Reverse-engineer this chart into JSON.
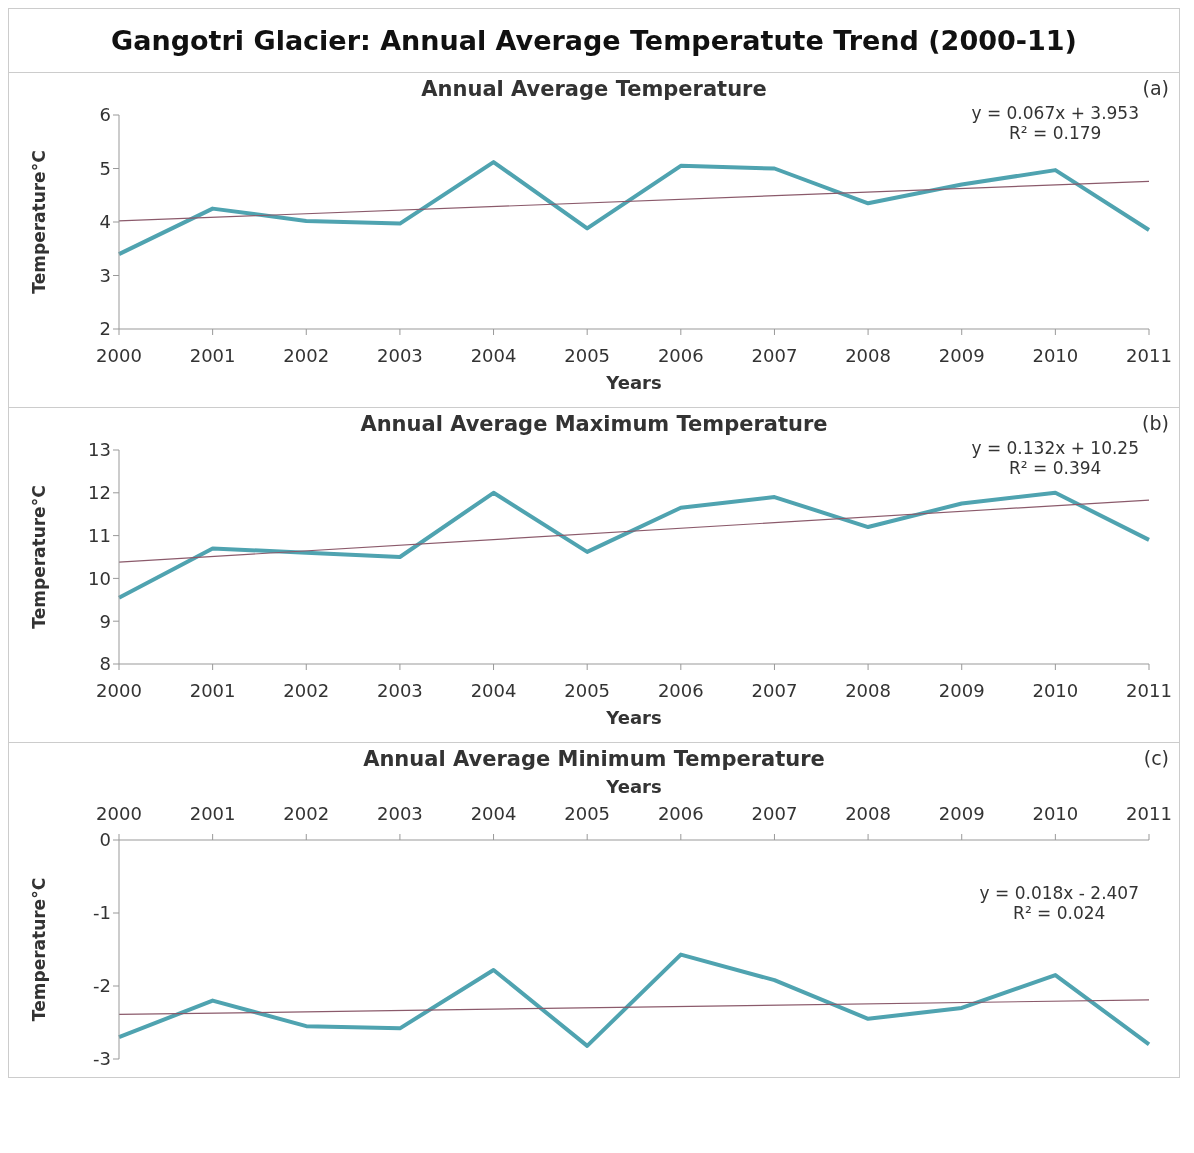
{
  "chart_data": [
    {
      "type": "line",
      "title": "Gangotri Glacier: Annual Average Temperatute Trend (2000-11)",
      "subtitle": "Annual Average Temperature",
      "xlabel": "Years",
      "ylabel": "Temperature°C",
      "categories": [
        "2000",
        "2001",
        "2002",
        "2003",
        "2004",
        "2005",
        "2006",
        "2007",
        "2008",
        "2009",
        "2010",
        "2011"
      ],
      "ylim": [
        2,
        6
      ],
      "yticks": [
        2,
        3,
        4,
        5,
        6
      ],
      "grid": false,
      "legend": false,
      "marker": "none",
      "annotations": [
        "(a)",
        "y = 0.067x + 3.953",
        "R² = 0.179"
      ],
      "series": [
        {
          "color": "#4fa3b0",
          "values": [
            3.4,
            4.25,
            4.02,
            3.97,
            5.12,
            3.88,
            5.05,
            5.0,
            4.35,
            4.7,
            4.97,
            3.85
          ]
        },
        {
          "color": "#8b5a6b",
          "values": [
            4.02,
            null,
            null,
            null,
            null,
            null,
            null,
            null,
            null,
            null,
            null,
            4.76
          ]
        }
      ]
    },
    {
      "type": "line",
      "subtitle": "Annual Average Maximum Temperature",
      "xlabel": "Years",
      "ylabel": "Temperature°C",
      "categories": [
        "2000",
        "2001",
        "2002",
        "2003",
        "2004",
        "2005",
        "2006",
        "2007",
        "2008",
        "2009",
        "2010",
        "2011"
      ],
      "ylim": [
        8,
        13
      ],
      "yticks": [
        8,
        9,
        10,
        11,
        12,
        13
      ],
      "grid": false,
      "legend": false,
      "marker": "none",
      "annotations": [
        "(b)",
        "y = 0.132x + 10.25",
        "R² = 0.394"
      ],
      "series": [
        {
          "color": "#4fa3b0",
          "values": [
            9.55,
            10.7,
            10.6,
            10.5,
            12.0,
            10.62,
            11.65,
            11.9,
            11.2,
            11.75,
            12.0,
            10.9
          ]
        },
        {
          "color": "#8b5a6b",
          "values": [
            10.38,
            null,
            null,
            null,
            null,
            null,
            null,
            null,
            null,
            null,
            null,
            11.83
          ]
        }
      ]
    },
    {
      "type": "line",
      "subtitle": "Annual Average Minimum Temperature",
      "xlabel": "Years",
      "ylabel": "Temperature°C",
      "categories": [
        "2000",
        "2001",
        "2002",
        "2003",
        "2004",
        "2005",
        "2006",
        "2007",
        "2008",
        "2009",
        "2010",
        "2011"
      ],
      "ylim": [
        -3,
        0
      ],
      "yticks": [
        -3,
        -2,
        -1,
        0
      ],
      "grid": false,
      "legend": false,
      "marker": "none",
      "annotations": [
        "(c)",
        "y = 0.018x - 2.407",
        "R² = 0.024"
      ],
      "series": [
        {
          "color": "#4fa3b0",
          "values": [
            -2.7,
            -2.2,
            -2.55,
            -2.58,
            -1.78,
            -2.82,
            -1.57,
            -1.92,
            -2.45,
            -2.3,
            -1.85,
            -2.8
          ]
        },
        {
          "color": "#8b5a6b",
          "values": [
            -2.39,
            null,
            null,
            null,
            null,
            null,
            null,
            null,
            null,
            null,
            null,
            -2.19
          ]
        }
      ]
    }
  ]
}
